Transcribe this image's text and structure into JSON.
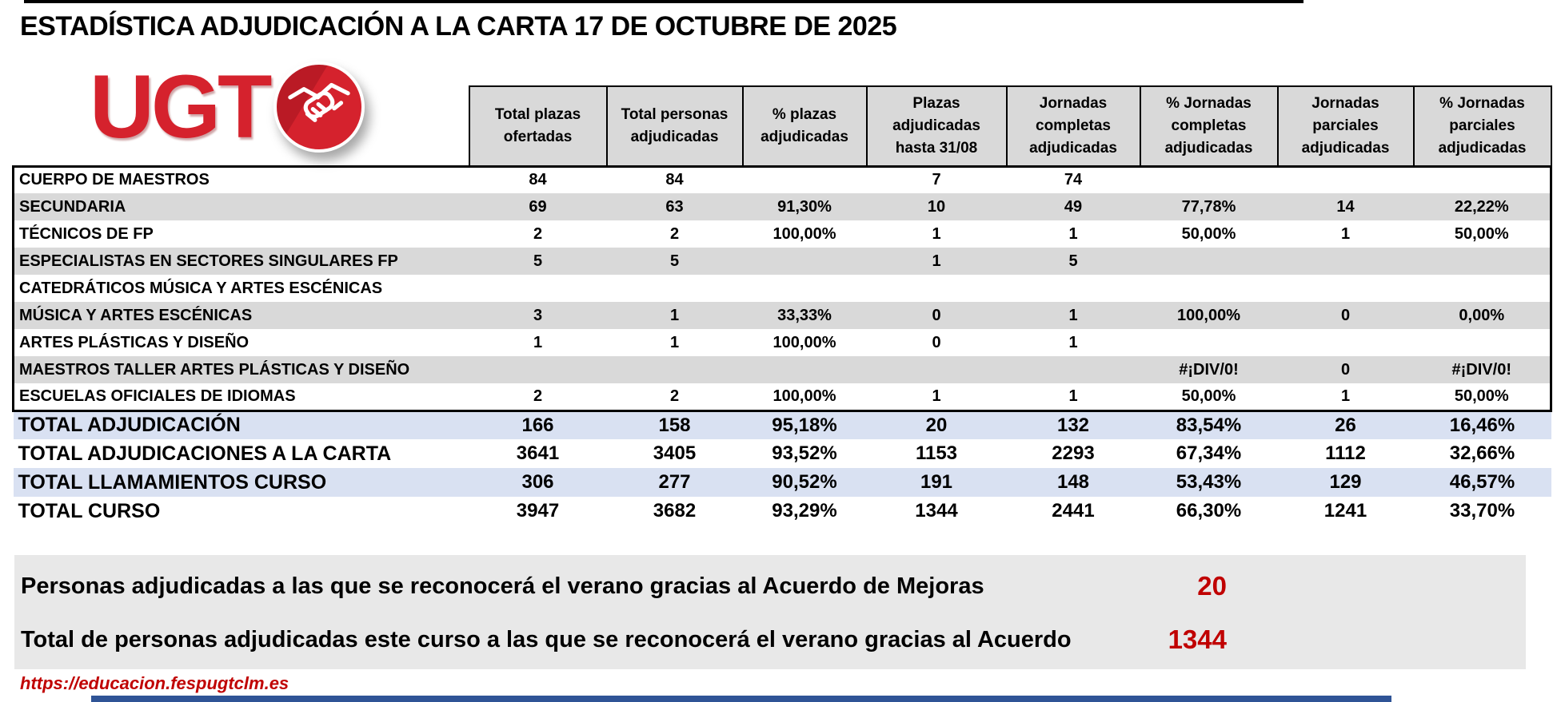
{
  "title": "ESTADÍSTICA ADJUDICACIÓN A LA CARTA 17 DE OCTUBRE DE 2025",
  "logo": {
    "text": "UGT",
    "icon": "handshake-icon"
  },
  "table": {
    "columns": [
      "Total plazas ofertadas",
      "Total personas adjudicadas",
      "% plazas adjudicadas",
      "Plazas adjudicadas hasta 31/08",
      "Jornadas completas adjudicadas",
      "% Jornadas completas adjudicadas",
      "Jornadas parciales adjudicadas",
      "% Jornadas parciales adjudicadas"
    ],
    "rows": [
      {
        "label": "CUERPO DE MAESTROS",
        "values": [
          "84",
          "84",
          "",
          "7",
          "74",
          "",
          "",
          ""
        ]
      },
      {
        "label": "SECUNDARIA",
        "values": [
          "69",
          "63",
          "91,30%",
          "10",
          "49",
          "77,78%",
          "14",
          "22,22%"
        ]
      },
      {
        "label": "TÉCNICOS DE FP",
        "values": [
          "2",
          "2",
          "100,00%",
          "1",
          "1",
          "50,00%",
          "1",
          "50,00%"
        ]
      },
      {
        "label": "ESPECIALISTAS EN SECTORES SINGULARES FP",
        "values": [
          "5",
          "5",
          "",
          "1",
          "5",
          "",
          "",
          ""
        ]
      },
      {
        "label": "CATEDRÁTICOS MÚSICA Y ARTES ESCÉNICAS",
        "values": [
          "",
          "",
          "",
          "",
          "",
          "",
          "",
          ""
        ]
      },
      {
        "label": "MÚSICA Y ARTES ESCÉNICAS",
        "values": [
          "3",
          "1",
          "33,33%",
          "0",
          "1",
          "100,00%",
          "0",
          "0,00%"
        ]
      },
      {
        "label": "ARTES PLÁSTICAS Y DISEÑO",
        "values": [
          "1",
          "1",
          "100,00%",
          "0",
          "1",
          "",
          "",
          ""
        ]
      },
      {
        "label": "MAESTROS TALLER ARTES PLÁSTICAS Y DISEÑO",
        "values": [
          "",
          "",
          "",
          "",
          "",
          "#¡DIV/0!",
          "0",
          "#¡DIV/0!"
        ]
      },
      {
        "label": "ESCUELAS OFICIALES DE IDIOMAS",
        "values": [
          "2",
          "2",
          "100,00%",
          "1",
          "1",
          "50,00%",
          "1",
          "50,00%"
        ]
      }
    ],
    "total_rows": [
      {
        "label": "TOTAL ADJUDICACIÓN",
        "values": [
          "166",
          "158",
          "95,18%",
          "20",
          "132",
          "83,54%",
          "26",
          "16,46%"
        ]
      },
      {
        "label": "TOTAL ADJUDICACIONES A LA CARTA",
        "values": [
          "3641",
          "3405",
          "93,52%",
          "1153",
          "2293",
          "67,34%",
          "1112",
          "32,66%"
        ]
      },
      {
        "label": "TOTAL LLAMAMIENTOS CURSO",
        "values": [
          "306",
          "277",
          "90,52%",
          "191",
          "148",
          "53,43%",
          "129",
          "46,57%"
        ]
      },
      {
        "label": "TOTAL CURSO",
        "values": [
          "3947",
          "3682",
          "93,29%",
          "1344",
          "2441",
          "66,30%",
          "1241",
          "33,70%"
        ]
      }
    ]
  },
  "footer": {
    "line1": {
      "label": "Personas adjudicadas a las que se reconocerá el verano gracias al Acuerdo de Mejoras",
      "value": "20"
    },
    "line2": {
      "label": "Total de personas adjudicadas este curso a las que se reconocerá el verano gracias al Acuerdo",
      "value": "1344"
    },
    "url": "https://educacion.fespugtclm.es"
  },
  "colors": {
    "brand_red": "#D5222D",
    "accent_red": "#C00000",
    "header_stripe_gray": "#D9D9D9",
    "total_stripe_blue": "#D9E1F2",
    "footer_gray": "#E8E8E8",
    "bottom_bar_blue": "#2F5496"
  }
}
